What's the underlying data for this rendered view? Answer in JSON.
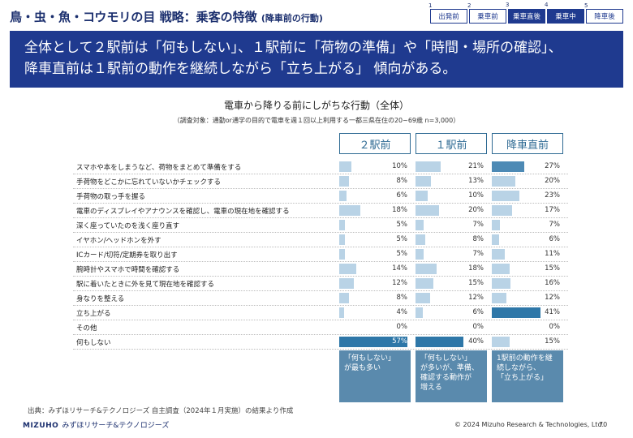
{
  "header": {
    "title": "鳥・虫・魚・コウモリの目 戦略：乗客の特徴",
    "subtitle": "(降車前の行動)"
  },
  "steps": [
    {
      "num": "1",
      "label": "出発前",
      "active": false
    },
    {
      "num": "2",
      "label": "乗車前",
      "active": false
    },
    {
      "num": "3",
      "label": "乗車直後",
      "active": true
    },
    {
      "num": "4",
      "label": "乗車中",
      "active": true
    },
    {
      "num": "5",
      "label": "降車後",
      "active": false
    }
  ],
  "banner": {
    "line1": "全体として２駅前は「何もしない」、１駅前に「荷物の準備」や「時間・場所の確認」、",
    "line2": "降車直前は１駅前の動作を継続しながら「立ち上がる」 傾向がある。"
  },
  "chart_data": {
    "type": "bar",
    "orientation": "horizontal",
    "title": "電車から降りる前にしがちな行動（全体）",
    "note": "（調査対象：通勤or通学の目的で電車を週１回以上利用する一都三県在住の20~69歳 n=3,000）",
    "unit": "%",
    "categories": [
      "スマホや本をしまうなど、荷物をまとめて準備をする",
      "手荷物をどこかに忘れていないかチェックする",
      "手荷物の取っ手を握る",
      "電車のディスプレイやアナウンスを確認し、電車の現在地を確認する",
      "深く座っていたのを浅く座り直す",
      "イヤホン/ヘッドホンを外す",
      "ICカード/切符/定期券を取り出す",
      "腕時計やスマホで時間を確認する",
      "駅に着いたときに外を見て現在地を確認する",
      "身なりを整える",
      "立ち上がる",
      "その他",
      "何もしない"
    ],
    "series": [
      {
        "name": "２駅前",
        "values": [
          10,
          8,
          6,
          18,
          5,
          5,
          5,
          14,
          12,
          8,
          4,
          0,
          57
        ]
      },
      {
        "name": "１駅前",
        "values": [
          21,
          13,
          10,
          20,
          7,
          8,
          7,
          18,
          15,
          12,
          6,
          0,
          40
        ]
      },
      {
        "name": "降車直前",
        "values": [
          27,
          20,
          23,
          17,
          7,
          6,
          11,
          15,
          16,
          12,
          41,
          0,
          15
        ]
      }
    ],
    "max_value": 60,
    "highlight_color": "#2e77a8",
    "base_color": "#b9d3e6"
  },
  "callouts": [
    "「何もしない」\nが最も多い",
    "「何もしない」\nが多いが、準備、\n確認する動作が\n増える",
    "1駅前の動作を継\n続しながら、\n「立ち上がる」"
  ],
  "footer": {
    "source": "出典：みずほリサーチ&テクノロジーズ 自主調査（2024年１月実施）の結果より作成",
    "logo_mark": "MIZUHO",
    "logo_text": "みずほリサーチ&テクノロジーズ",
    "copyright": "© 2024 Mizuho Research & Technologies, Ltd.",
    "page": "70"
  }
}
